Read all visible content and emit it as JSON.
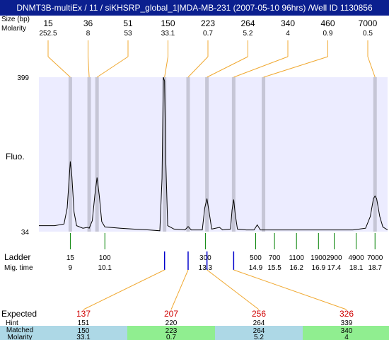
{
  "title": "DNMT3B-multiEx / 11 / siKHSRP_global_1|MDA-MB-231 (2007-05-10 96hrs) /Well ID 1130856",
  "top_labels": {
    "bp": "Size (bp)",
    "molarity": "Molarity"
  },
  "side_labels": {
    "fluo": "Fluo.",
    "ladder": "Ladder",
    "mig_time": "Mig. time"
  },
  "bottom_labels": {
    "expected": "Expected",
    "hint": "Hint",
    "matched": "Matched",
    "molarity": "Molarity"
  },
  "colors": {
    "title_bg": "#0b1f8f",
    "plot_bg": "#ececff",
    "band": "#c6c6d6",
    "lead": "#f0a830",
    "ladder_tick": "#008000",
    "match_tick": "#0000cc",
    "expected_red": "#d00000",
    "cell_blue": "#add8e6",
    "cell_green": "#90ee90"
  },
  "chart_data": {
    "type": "line",
    "y_axis": {
      "max_label": "399",
      "min_label": "34",
      "ylim": [
        34,
        399
      ]
    },
    "top_peaks": [
      {
        "size": "15",
        "molarity": "252.5",
        "mig": 9.0
      },
      {
        "size": "36",
        "molarity": "8",
        "mig": 9.6
      },
      {
        "size": "51",
        "molarity": "53",
        "mig": 9.85
      },
      {
        "size": "150",
        "molarity": "33.1",
        "mig": 12.0
      },
      {
        "size": "223",
        "molarity": "0.7",
        "mig": 12.75
      },
      {
        "size": "264",
        "molarity": "5.2",
        "mig": 13.35
      },
      {
        "size": "340",
        "molarity": "4",
        "mig": 14.2
      },
      {
        "size": "460",
        "molarity": "0.9",
        "mig": 15.15
      },
      {
        "size": "7000",
        "molarity": "0.5",
        "mig": 18.7
      }
    ],
    "ladder": [
      {
        "size": "15",
        "mig": "9",
        "t": 9.0
      },
      {
        "size": "100",
        "mig": "10.1",
        "t": 10.1
      },
      {
        "size": "300",
        "mig": "13.3",
        "t": 13.3
      },
      {
        "size": "500",
        "mig": "14.9",
        "t": 14.9
      },
      {
        "size": "700",
        "mig": "15.5",
        "t": 15.5
      },
      {
        "size": "1100",
        "mig": "16.2",
        "t": 16.2
      },
      {
        "size": "1900",
        "mig": "16.9",
        "t": 16.9
      },
      {
        "size": "2900",
        "mig": "17.4",
        "t": 17.4
      },
      {
        "size": "4900",
        "mig": "18.1",
        "t": 18.1
      },
      {
        "size": "7000",
        "mig": "18.7",
        "t": 18.7
      }
    ],
    "expected": [
      {
        "expected": "137",
        "hint": "151",
        "matched": "150",
        "molarity": "33.1",
        "mig": 12.0,
        "matched_color": "blue"
      },
      {
        "expected": "207",
        "hint": "220",
        "matched": "223",
        "molarity": "0.7",
        "mig": 12.75,
        "matched_color": "green"
      },
      {
        "expected": "256",
        "hint": "264",
        "matched": "264",
        "molarity": "5.2",
        "mig": 13.35,
        "matched_color": "blue"
      },
      {
        "expected": "326",
        "hint": "339",
        "matched": "340",
        "molarity": "4",
        "mig": 14.2,
        "matched_color": "green"
      }
    ],
    "trace": [
      [
        8.0,
        48
      ],
      [
        8.5,
        48
      ],
      [
        8.8,
        52
      ],
      [
        8.9,
        90
      ],
      [
        9.0,
        200
      ],
      [
        9.05,
        165
      ],
      [
        9.12,
        80
      ],
      [
        9.2,
        48
      ],
      [
        9.4,
        42
      ],
      [
        9.55,
        44
      ],
      [
        9.6,
        42
      ],
      [
        9.7,
        60
      ],
      [
        9.78,
        120
      ],
      [
        9.85,
        162
      ],
      [
        9.92,
        120
      ],
      [
        10.0,
        58
      ],
      [
        10.1,
        45
      ],
      [
        10.6,
        42
      ],
      [
        11.0,
        40
      ],
      [
        11.5,
        38
      ],
      [
        11.85,
        36
      ],
      [
        11.92,
        160
      ],
      [
        11.96,
        399
      ],
      [
        12.0,
        390
      ],
      [
        12.04,
        200
      ],
      [
        12.1,
        48
      ],
      [
        12.3,
        40
      ],
      [
        12.65,
        38
      ],
      [
        12.75,
        46
      ],
      [
        12.85,
        38
      ],
      [
        13.2,
        38
      ],
      [
        13.28,
        90
      ],
      [
        13.35,
        112
      ],
      [
        13.42,
        80
      ],
      [
        13.5,
        40
      ],
      [
        13.75,
        44
      ],
      [
        13.85,
        38
      ],
      [
        14.1,
        40
      ],
      [
        14.15,
        85
      ],
      [
        14.2,
        110
      ],
      [
        14.25,
        75
      ],
      [
        14.32,
        40
      ],
      [
        14.6,
        38
      ],
      [
        14.85,
        38
      ],
      [
        14.95,
        50
      ],
      [
        15.05,
        38
      ],
      [
        15.5,
        38
      ],
      [
        16.0,
        38
      ],
      [
        16.5,
        38
      ],
      [
        17.0,
        38
      ],
      [
        17.5,
        38
      ],
      [
        18.0,
        38
      ],
      [
        18.4,
        42
      ],
      [
        18.55,
        70
      ],
      [
        18.65,
        112
      ],
      [
        18.7,
        118
      ],
      [
        18.75,
        112
      ],
      [
        18.85,
        70
      ],
      [
        18.95,
        45
      ],
      [
        19.1,
        38
      ]
    ]
  }
}
